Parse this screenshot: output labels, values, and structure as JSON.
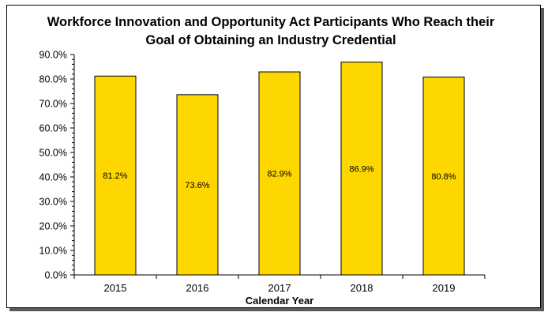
{
  "chart_data": {
    "type": "bar",
    "title_lines": [
      "Workforce Innovation and Opportunity Act Participants Who Reach their",
      "Goal of Obtaining an Industry Credential"
    ],
    "xlabel": "Calendar Year",
    "ylabel": "",
    "categories": [
      "2015",
      "2016",
      "2017",
      "2018",
      "2019"
    ],
    "values": [
      81.2,
      73.6,
      82.9,
      86.9,
      80.8
    ],
    "data_labels": [
      "81.2%",
      "73.6%",
      "82.9%",
      "86.9%",
      "80.8%"
    ],
    "ylim": [
      0,
      90
    ],
    "yticks": [
      0,
      10,
      20,
      30,
      40,
      50,
      60,
      70,
      80,
      90
    ],
    "ytick_labels": [
      "0.0%",
      "10.0%",
      "20.0%",
      "30.0%",
      "40.0%",
      "50.0%",
      "60.0%",
      "70.0%",
      "80.0%",
      "90.0%"
    ],
    "grid": false,
    "legend": "none",
    "bar_color": "#FFD700",
    "bar_edge_color": "#000000"
  }
}
